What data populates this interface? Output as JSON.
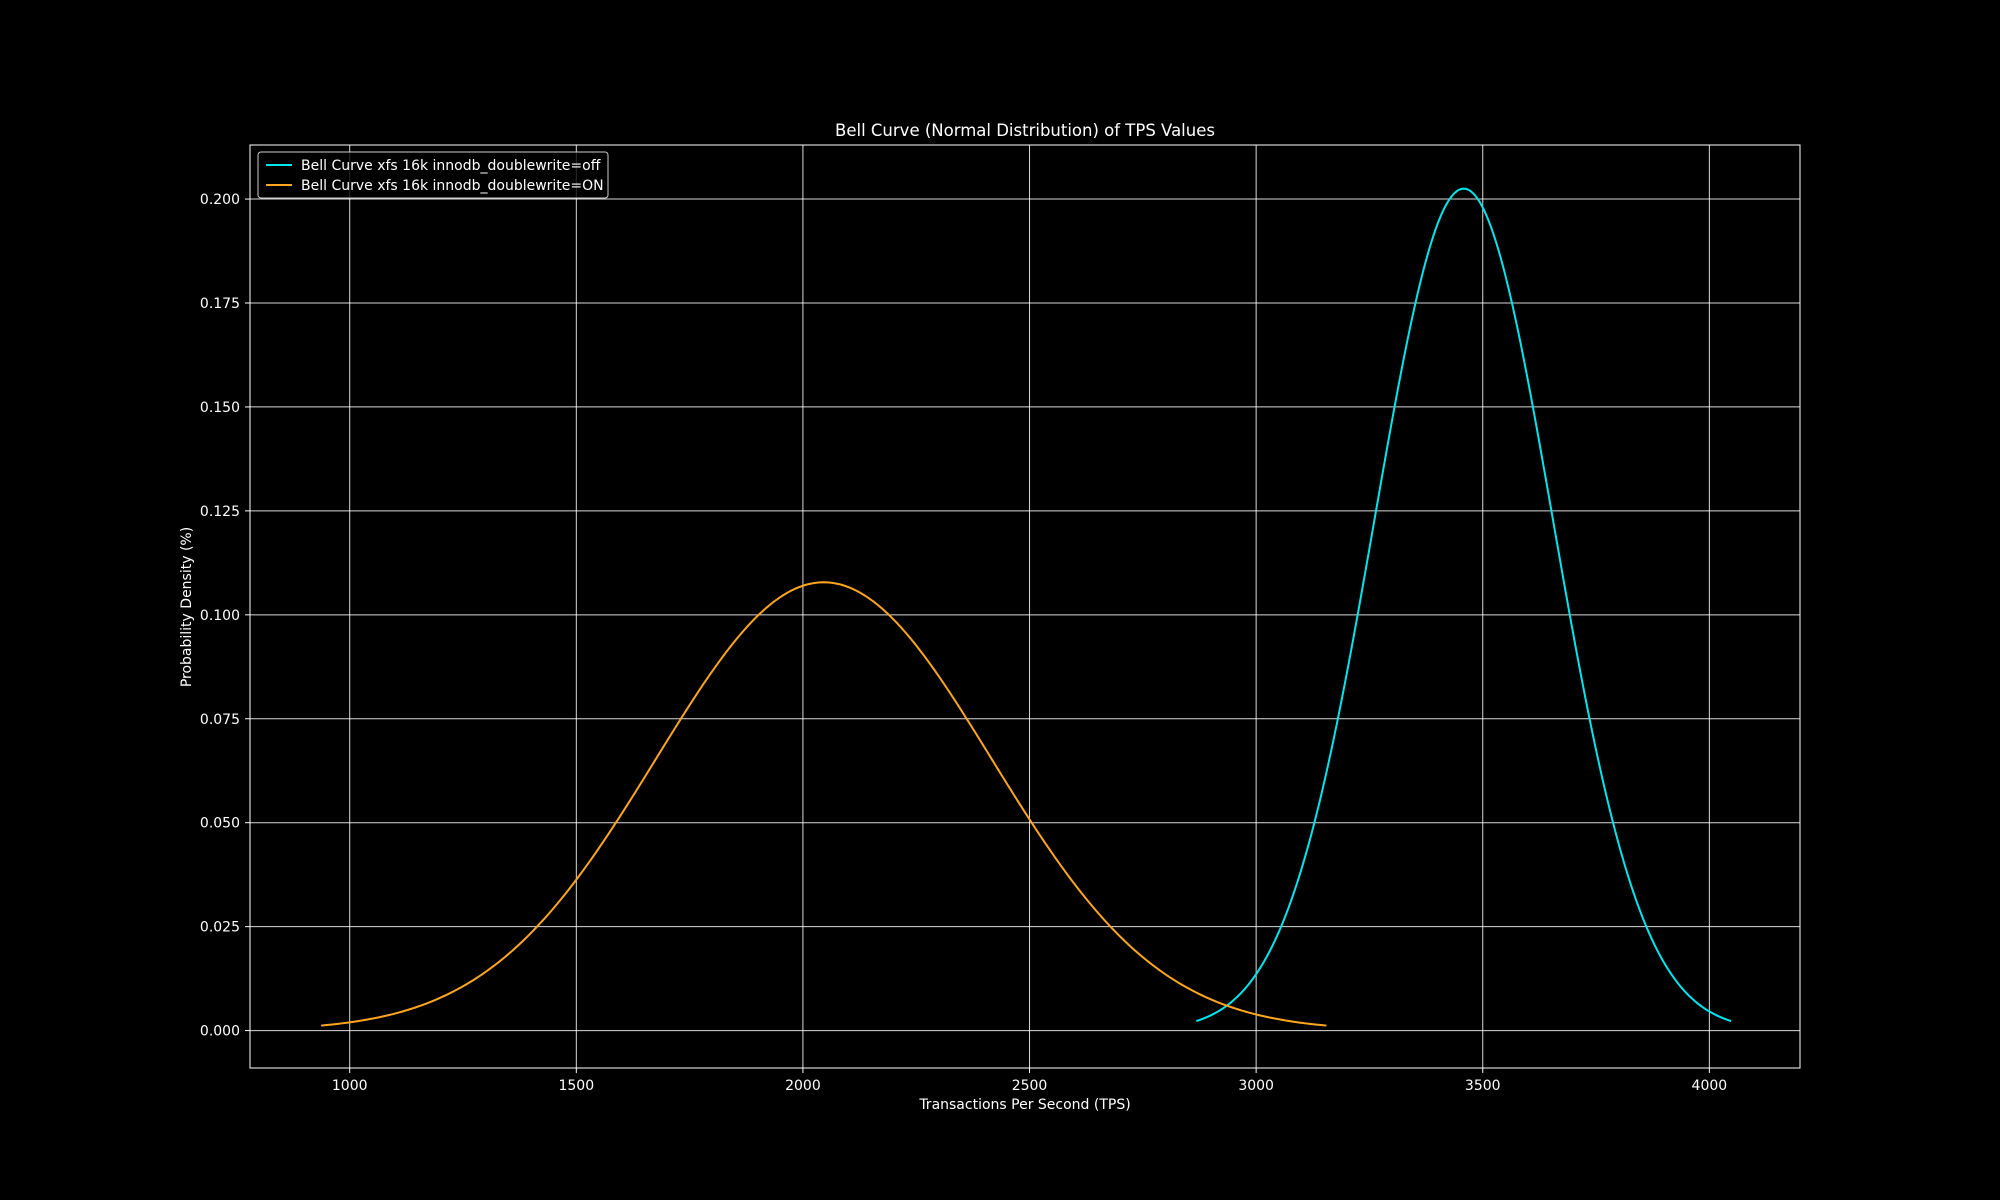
{
  "chart_data": {
    "type": "line",
    "title": "Bell Curve (Normal Distribution) of TPS Values",
    "xlabel": "Transactions Per Second (TPS)",
    "ylabel": "Probability Density (%)",
    "xlim": [
      780,
      4200
    ],
    "ylim": [
      -0.009,
      0.213
    ],
    "xticks": [
      1000,
      1500,
      2000,
      2500,
      3000,
      3500,
      4000
    ],
    "xtick_labels": [
      "1000",
      "1500",
      "2000",
      "2500",
      "3000",
      "3500",
      "4000"
    ],
    "yticks": [
      0.0,
      0.025,
      0.05,
      0.075,
      0.1,
      0.125,
      0.15,
      0.175,
      0.2
    ],
    "ytick_labels": [
      "0.000",
      "0.025",
      "0.050",
      "0.075",
      "0.100",
      "0.125",
      "0.150",
      "0.175",
      "0.200"
    ],
    "grid": true,
    "legend_position": "top-left",
    "background_color": "#000000",
    "foreground_color": "#ffffff",
    "series": [
      {
        "name": "Bell Curve xfs 16k innodb_doublewrite=off",
        "color": "#00e5ee",
        "distribution": {
          "mean": 3458,
          "std_dev": 197
        },
        "x_range": [
          2868,
          4048
        ],
        "peak": [
          3458,
          0.2026
        ]
      },
      {
        "name": "Bell Curve xfs 16k innodb_doublewrite=ON",
        "color": "#ffa620",
        "distribution": {
          "mean": 2046,
          "std_dev": 370
        },
        "x_range": [
          937,
          3155
        ],
        "peak": [
          2046,
          0.1078
        ]
      }
    ]
  }
}
